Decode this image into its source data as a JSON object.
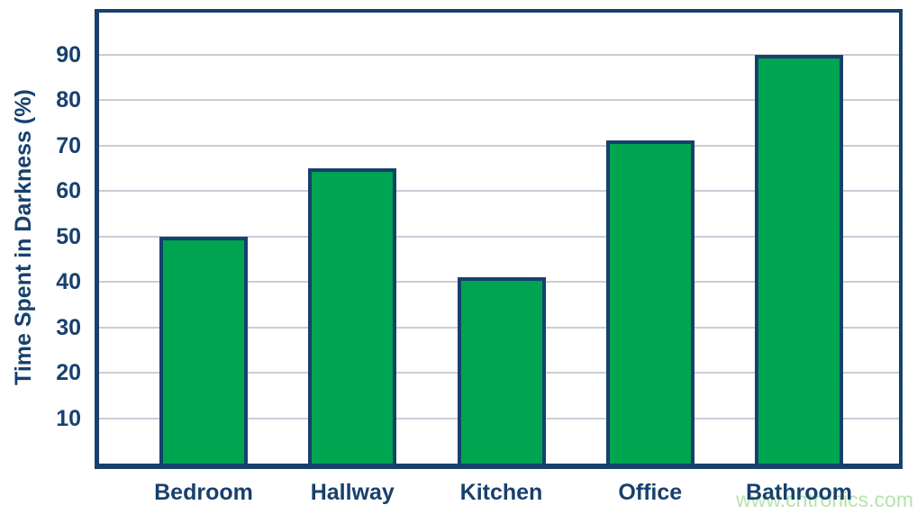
{
  "chart_data": {
    "type": "bar",
    "title": "",
    "categories": [
      "Bedroom",
      "Hallway",
      "Kitchen",
      "Office",
      "Bathroom"
    ],
    "values": [
      50,
      65,
      41,
      71,
      90
    ],
    "xlabel": "",
    "ylabel": "Time Spent in Darkness (%)",
    "ylim": [
      0,
      100
    ],
    "yticks": [
      10,
      20,
      30,
      40,
      50,
      60,
      70,
      80,
      90
    ],
    "grid": true,
    "legend": "none",
    "colors": {
      "bar_fill": "#00a551",
      "bar_border": "#17406d",
      "axis": "#17406d",
      "label_text": "#17406d",
      "gridline": "#c9cdd8",
      "background": "#ffffff"
    }
  },
  "watermark": {
    "text": "www.cntronics.com",
    "color": "#b7e3ae"
  }
}
